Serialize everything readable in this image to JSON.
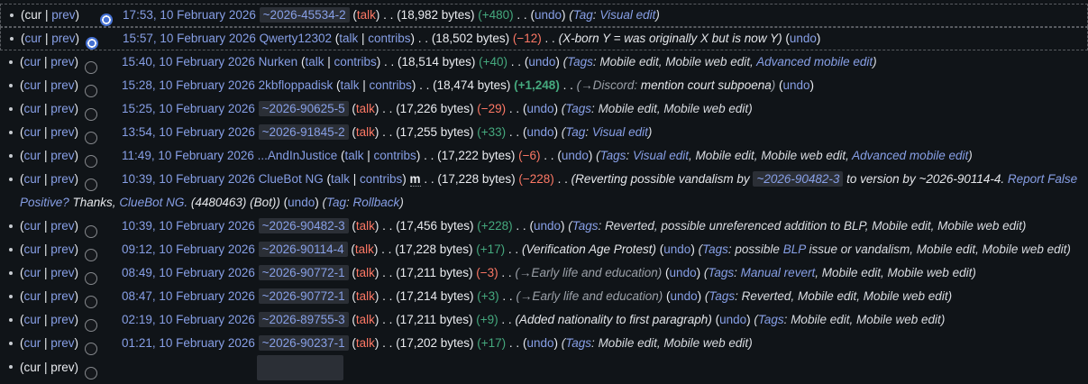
{
  "labels": {
    "cur": "cur",
    "prev": "prev",
    "pipe": " | ",
    "open": "(",
    "close": ")",
    "sep1": " . . ",
    "sep2": " . .",
    "talk": "talk",
    "contribs": "contribs",
    "undo": "undo",
    "minor": "m",
    "tag_singular": "Tag",
    "tag_plural": "Tags",
    "colon": ": "
  },
  "colors": {
    "background": "#101418",
    "text": "#eaecf0",
    "link": "#879fe6",
    "redlink": "#fd7865",
    "added": "#45a97e",
    "removed": "#fd7865",
    "autocomment": "#9ba0a8",
    "temp_user_pill": "#2b2f36",
    "selected_dash": "#595c61",
    "radio_selected": "#4470d2"
  },
  "rows": [
    {
      "selected": true,
      "cur_is_link": false,
      "radio": "new",
      "date": "17:53, 10 February 2026",
      "user": "~2026-45534-2",
      "user_type": "temp",
      "minor": false,
      "bytes": "(18,982 bytes)",
      "delta": "(+480)",
      "delta_sign": "pos",
      "delta_bold": false,
      "summary": null,
      "tags": {
        "label": "Tag",
        "items": [
          [
            {
              "t": "Visual edit",
              "l": true
            }
          ]
        ]
      }
    },
    {
      "selected": true,
      "cur_is_link": true,
      "radio": "old",
      "date": "15:57, 10 February 2026",
      "user": "Qwerty12302",
      "user_type": "registered",
      "minor": false,
      "bytes": "(18,502 bytes)",
      "delta": "(−12)",
      "delta_sign": "neg",
      "delta_bold": false,
      "summary": [
        {
          "t": "(X-born Y = was originally X but is now Y)",
          "s": "c"
        }
      ],
      "tags": null
    },
    {
      "selected": false,
      "cur_is_link": true,
      "radio": "off",
      "date": "15:40, 10 February 2026",
      "user": "Nurken",
      "user_type": "registered",
      "minor": false,
      "bytes": "(18,514 bytes)",
      "delta": "(+40)",
      "delta_sign": "pos",
      "delta_bold": false,
      "summary": null,
      "tags": {
        "label": "Tags",
        "items": [
          [
            {
              "t": "Mobile edit",
              "l": false
            }
          ],
          [
            {
              "t": "Mobile web edit",
              "l": false
            }
          ],
          [
            {
              "t": "Advanced mobile edit",
              "l": true
            }
          ]
        ]
      }
    },
    {
      "selected": false,
      "cur_is_link": true,
      "radio": "off",
      "date": "15:28, 10 February 2026",
      "user": "2kbfloppadisk",
      "user_type": "registered",
      "minor": false,
      "bytes": "(18,474 bytes)",
      "delta": "(+1,248)",
      "delta_sign": "pos",
      "delta_bold": true,
      "summary": [
        {
          "t": "(→Discord:",
          "s": "a"
        },
        {
          "t": " mention court subpoena",
          "s": "c"
        },
        {
          "t": ")",
          "s": "a"
        }
      ],
      "tags": null
    },
    {
      "selected": false,
      "cur_is_link": true,
      "radio": "off",
      "date": "15:25, 10 February 2026",
      "user": "~2026-90625-5",
      "user_type": "temp",
      "minor": false,
      "bytes": "(17,226 bytes)",
      "delta": "(−29)",
      "delta_sign": "neg",
      "delta_bold": false,
      "summary": null,
      "tags": {
        "label": "Tags",
        "items": [
          [
            {
              "t": "Mobile edit",
              "l": false
            }
          ],
          [
            {
              "t": "Mobile web edit",
              "l": false
            }
          ]
        ]
      }
    },
    {
      "selected": false,
      "cur_is_link": true,
      "radio": "off",
      "date": "13:54, 10 February 2026",
      "user": "~2026-91845-2",
      "user_type": "temp",
      "minor": false,
      "bytes": "(17,255 bytes)",
      "delta": "(+33)",
      "delta_sign": "pos",
      "delta_bold": false,
      "summary": null,
      "tags": {
        "label": "Tag",
        "items": [
          [
            {
              "t": "Visual edit",
              "l": true
            }
          ]
        ]
      }
    },
    {
      "selected": false,
      "cur_is_link": true,
      "radio": "off",
      "date": "11:49, 10 February 2026",
      "user": "...AndInJustice",
      "user_type": "registered",
      "minor": false,
      "bytes": "(17,222 bytes)",
      "delta": "(−6)",
      "delta_sign": "neg",
      "delta_bold": false,
      "summary": null,
      "tags": {
        "label": "Tags",
        "items": [
          [
            {
              "t": "Visual edit",
              "l": true
            }
          ],
          [
            {
              "t": "Mobile edit",
              "l": false
            }
          ],
          [
            {
              "t": "Mobile web edit",
              "l": false
            }
          ],
          [
            {
              "t": "Advanced mobile edit",
              "l": true
            }
          ]
        ]
      }
    },
    {
      "selected": false,
      "cur_is_link": true,
      "radio": "off",
      "date": "10:39, 10 February 2026",
      "user": "ClueBot NG",
      "user_type": "registered",
      "minor": true,
      "bytes": "(17,228 bytes)",
      "delta": "(−228)",
      "delta_sign": "neg",
      "delta_bold": false,
      "summary": [
        {
          "t": "(Reverting possible vandalism by ",
          "s": "c"
        },
        {
          "t": "~2026-90482-3",
          "s": "tl"
        },
        {
          "t": " to version by ~2026-90114-4. ",
          "s": "c"
        },
        {
          "t": "Report False Positive?",
          "s": "l"
        },
        {
          "t": " Thanks, ",
          "s": "c"
        },
        {
          "t": "ClueBot NG.",
          "s": "l"
        },
        {
          "t": " (4480463) (Bot))",
          "s": "c"
        }
      ],
      "tags": {
        "label": "Tag",
        "items": [
          [
            {
              "t": "Rollback",
              "l": true
            }
          ]
        ]
      }
    },
    {
      "selected": false,
      "cur_is_link": true,
      "radio": "off",
      "date": "10:39, 10 February 2026",
      "user": "~2026-90482-3",
      "user_type": "temp",
      "minor": false,
      "bytes": "(17,456 bytes)",
      "delta": "(+228)",
      "delta_sign": "pos",
      "delta_bold": false,
      "summary": null,
      "tags": {
        "label": "Tags",
        "items": [
          [
            {
              "t": "Reverted",
              "l": false
            }
          ],
          [
            {
              "t": "possible unreferenced addition to BLP",
              "l": false
            }
          ],
          [
            {
              "t": "Mobile edit",
              "l": false
            }
          ],
          [
            {
              "t": "Mobile web edit",
              "l": false
            }
          ]
        ]
      }
    },
    {
      "selected": false,
      "cur_is_link": true,
      "radio": "off",
      "date": "09:12, 10 February 2026",
      "user": "~2026-90114-4",
      "user_type": "temp",
      "minor": false,
      "bytes": "(17,228 bytes)",
      "delta": "(+17)",
      "delta_sign": "pos",
      "delta_bold": false,
      "summary": [
        {
          "t": "(Verification Age Protest)",
          "s": "c"
        }
      ],
      "tags": {
        "label": "Tags",
        "items": [
          [
            {
              "t": "possible ",
              "l": false
            },
            {
              "t": "BLP",
              "l": true
            },
            {
              "t": " issue or vandalism",
              "l": false
            }
          ],
          [
            {
              "t": "Mobile edit",
              "l": false
            }
          ],
          [
            {
              "t": "Mobile web edit",
              "l": false
            }
          ]
        ]
      }
    },
    {
      "selected": false,
      "cur_is_link": true,
      "radio": "off",
      "date": "08:49, 10 February 2026",
      "user": "~2026-90772-1",
      "user_type": "temp",
      "minor": false,
      "bytes": "(17,211 bytes)",
      "delta": "(−3)",
      "delta_sign": "neg",
      "delta_bold": false,
      "summary": [
        {
          "t": "(→Early life and education)",
          "s": "a"
        }
      ],
      "tags": {
        "label": "Tags",
        "items": [
          [
            {
              "t": "Manual revert",
              "l": true
            }
          ],
          [
            {
              "t": "Mobile edit",
              "l": false
            }
          ],
          [
            {
              "t": "Mobile web edit",
              "l": false
            }
          ]
        ]
      }
    },
    {
      "selected": false,
      "cur_is_link": true,
      "radio": "off",
      "date": "08:47, 10 February 2026",
      "user": "~2026-90772-1",
      "user_type": "temp",
      "minor": false,
      "bytes": "(17,214 bytes)",
      "delta": "(+3)",
      "delta_sign": "pos",
      "delta_bold": false,
      "summary": [
        {
          "t": "(→Early life and education)",
          "s": "a"
        }
      ],
      "tags": {
        "label": "Tags",
        "items": [
          [
            {
              "t": "Reverted",
              "l": false
            }
          ],
          [
            {
              "t": "Mobile edit",
              "l": false
            }
          ],
          [
            {
              "t": "Mobile web edit",
              "l": false
            }
          ]
        ]
      }
    },
    {
      "selected": false,
      "cur_is_link": true,
      "radio": "off",
      "date": "02:19, 10 February 2026",
      "user": "~2026-89755-3",
      "user_type": "temp",
      "minor": false,
      "bytes": "(17,211 bytes)",
      "delta": "(+9)",
      "delta_sign": "pos",
      "delta_bold": false,
      "summary": [
        {
          "t": "(Added nationality to first paragraph)",
          "s": "c"
        }
      ],
      "tags": {
        "label": "Tags",
        "items": [
          [
            {
              "t": "Mobile edit",
              "l": false
            }
          ],
          [
            {
              "t": "Mobile web edit",
              "l": false
            }
          ]
        ]
      }
    },
    {
      "selected": false,
      "cur_is_link": true,
      "radio": "off",
      "date": "01:21, 10 February 2026",
      "user": "~2026-90237-1",
      "user_type": "temp",
      "minor": false,
      "bytes": "(17,202 bytes)",
      "delta": "(+17)",
      "delta_sign": "pos",
      "delta_bold": false,
      "summary": null,
      "tags": {
        "label": "Tags",
        "items": [
          [
            {
              "t": "Mobile edit",
              "l": false
            }
          ],
          [
            {
              "t": "Mobile web edit",
              "l": false
            }
          ]
        ]
      }
    },
    {
      "partial": true,
      "radio": "off"
    }
  ]
}
